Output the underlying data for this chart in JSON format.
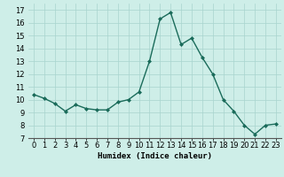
{
  "x": [
    0,
    1,
    2,
    3,
    4,
    5,
    6,
    7,
    8,
    9,
    10,
    11,
    12,
    13,
    14,
    15,
    16,
    17,
    18,
    19,
    20,
    21,
    22,
    23
  ],
  "y": [
    10.4,
    10.1,
    9.7,
    9.1,
    9.6,
    9.3,
    9.2,
    9.2,
    9.8,
    10.0,
    10.6,
    13.0,
    16.3,
    16.8,
    14.3,
    14.8,
    13.3,
    12.0,
    10.0,
    9.1,
    8.0,
    7.3,
    8.0,
    8.1
  ],
  "line_color": "#1a6b5a",
  "marker": "D",
  "marker_size": 2.0,
  "bg_color": "#ceeee8",
  "grid_color": "#a8d4ce",
  "xlabel": "Humidex (Indice chaleur)",
  "xlim": [
    -0.5,
    23.5
  ],
  "ylim": [
    7,
    17.5
  ],
  "yticks": [
    7,
    8,
    9,
    10,
    11,
    12,
    13,
    14,
    15,
    16,
    17
  ],
  "xticks": [
    0,
    1,
    2,
    3,
    4,
    5,
    6,
    7,
    8,
    9,
    10,
    11,
    12,
    13,
    14,
    15,
    16,
    17,
    18,
    19,
    20,
    21,
    22,
    23
  ],
  "xlabel_fontsize": 6.5,
  "tick_fontsize": 6.0,
  "linewidth": 1.0
}
